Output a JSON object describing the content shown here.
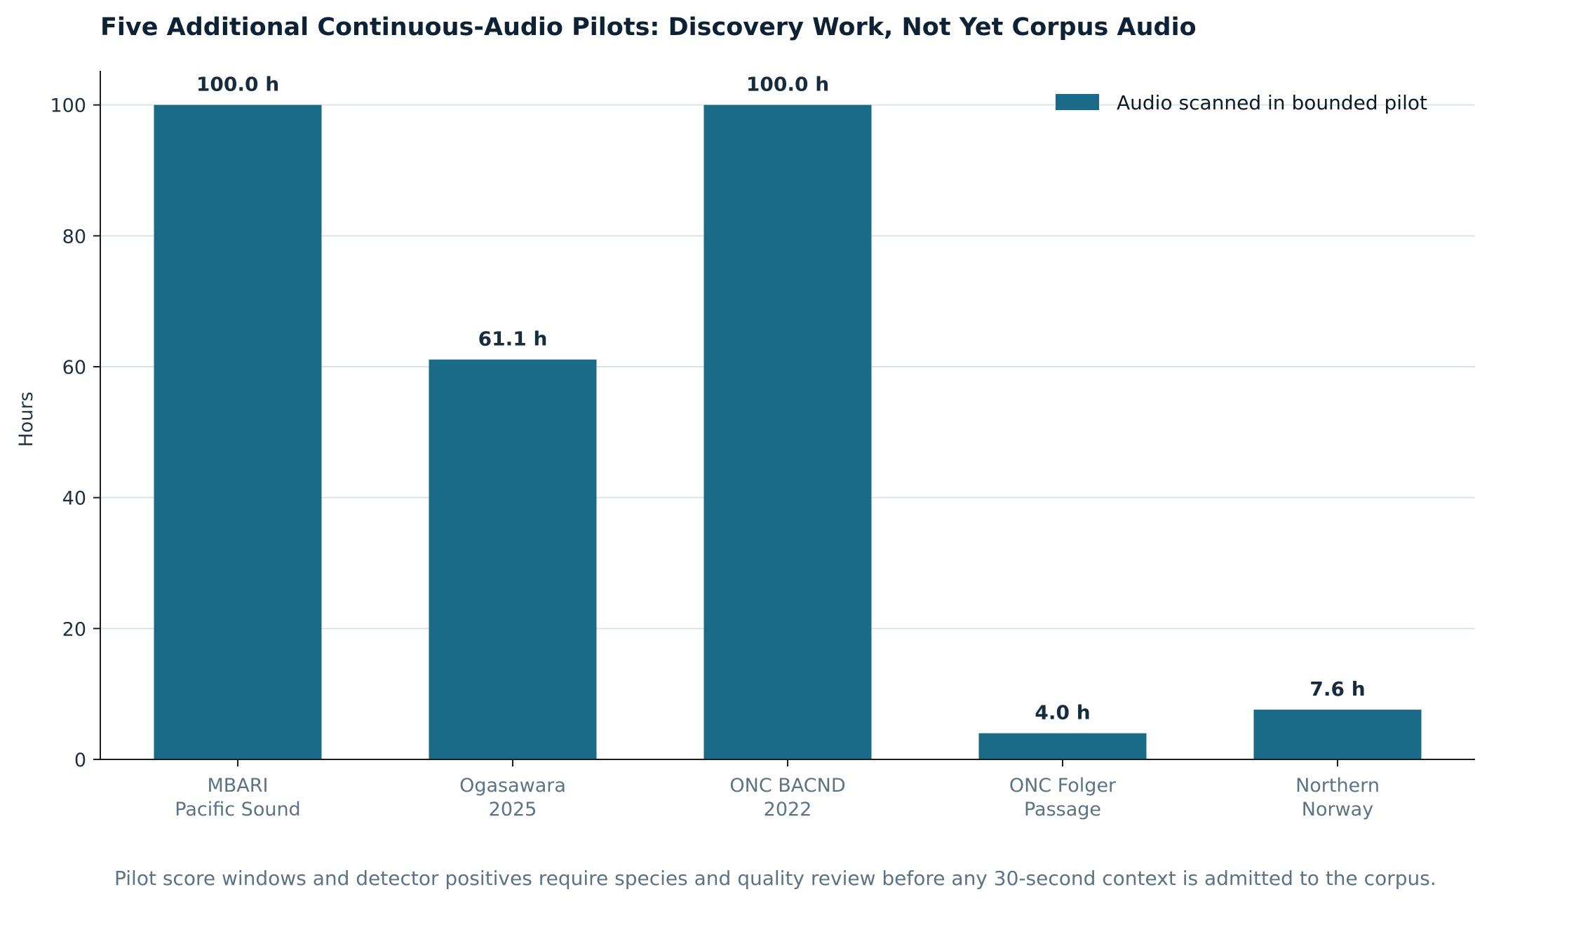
{
  "chart_data": {
    "type": "bar",
    "title": "Five Additional Continuous-Audio Pilots: Discovery Work, Not Yet Corpus Audio",
    "xlabel": "",
    "ylabel": "Hours",
    "categories": [
      [
        "MBARI",
        "Pacific Sound"
      ],
      [
        "Ogasawara",
        "2025"
      ],
      [
        "ONC BACND",
        "2022"
      ],
      [
        "ONC Folger",
        "Passage"
      ],
      [
        "Northern",
        "Norway"
      ]
    ],
    "series": [
      {
        "name": "Audio scanned in bounded pilot",
        "values": [
          100.0,
          61.1,
          100.0,
          4.0,
          7.6
        ],
        "color": "#196b87"
      }
    ],
    "data_labels": [
      "100.0 h",
      "61.1 h",
      "100.0 h",
      "4.0 h",
      "7.6 h"
    ],
    "ylim": [
      0,
      105
    ],
    "yticks": [
      0,
      20,
      40,
      60,
      80,
      100
    ],
    "grid": "horizontal",
    "legend_position": "top-right",
    "footnote": "Pilot score windows and detector positives require species and quality review before any 30-second context is admitted to the corpus."
  },
  "colors": {
    "bar": "#196b87",
    "grid": "#d8e4e8",
    "axis": "#1c1c1c"
  }
}
